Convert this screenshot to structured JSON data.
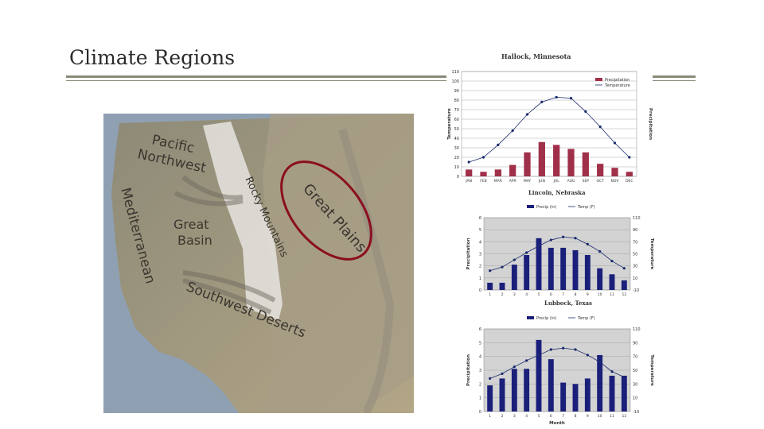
{
  "slide": {
    "title": "Climate Regions"
  },
  "map": {
    "labels": {
      "pacific": "Pacific",
      "northwest": "Northwest",
      "mediterranean": "Mediterranean",
      "great_basin_1": "Great",
      "great_basin_2": "Basin",
      "rocky": "Rocky Mountains",
      "great_plains": "Great Plains",
      "southwest": "Southwest Deserts"
    },
    "colors": {
      "highlight": "#8b0f1e",
      "land": "#9a9078",
      "water": "#8fa3b8"
    }
  },
  "chart_data": [
    {
      "type": "bar",
      "title": "Hallock, Minnesota",
      "legend": [
        "Precipitation",
        "Temperature"
      ],
      "ylabel_left": "Temperature",
      "ylabel_right": "Precipitation",
      "categories": [
        "JAN",
        "FEB",
        "MAR",
        "APR",
        "MAY",
        "JUN",
        "JUL",
        "AUG",
        "SEP",
        "OCT",
        "NOV",
        "DEC"
      ],
      "series": [
        {
          "name": "Precipitation",
          "values": [
            12,
            8,
            12,
            20,
            42,
            60,
            55,
            48,
            42,
            22,
            15,
            8
          ]
        },
        {
          "name": "Temperature",
          "values": [
            15,
            20,
            33,
            48,
            65,
            78,
            83,
            82,
            68,
            52,
            35,
            20
          ]
        }
      ],
      "y_ticks_left": [
        "0",
        "10",
        "20",
        "30",
        "40",
        "50",
        "60",
        "70",
        "80",
        "90",
        "100",
        "110"
      ],
      "ylim": [
        0,
        110
      ],
      "colors": {
        "bar": "#a0304a",
        "line": "#1a2a6c"
      },
      "caption": "Lincoln, Nebraska"
    },
    {
      "type": "bar",
      "title": "",
      "legend": [
        "Precip (in)",
        "Temp (F)"
      ],
      "ylabel_left": "Precipitation",
      "ylabel_right": "Temperature",
      "categories": [
        "1",
        "2",
        "3",
        "4",
        "5",
        "6",
        "7",
        "8",
        "9",
        "10",
        "11",
        "12"
      ],
      "series": [
        {
          "name": "Precip (in)",
          "values": [
            0.6,
            0.6,
            2.1,
            2.9,
            4.3,
            3.5,
            3.5,
            3.3,
            2.9,
            1.8,
            1.3,
            0.8
          ]
        },
        {
          "name": "Temp (F)",
          "values": [
            22,
            28,
            40,
            52,
            63,
            73,
            78,
            76,
            66,
            54,
            38,
            26
          ]
        }
      ],
      "y_ticks_left": [
        "0",
        "1",
        "2",
        "3",
        "4",
        "5",
        "6"
      ],
      "y_ticks_right": [
        "-10",
        "10",
        "30",
        "50",
        "70",
        "90",
        "110"
      ],
      "ylim": [
        0,
        6
      ],
      "colors": {
        "bar": "#1a1f7a",
        "line": "#1a2a6c"
      },
      "caption": "Lubbock, Texas"
    },
    {
      "type": "bar",
      "title": "",
      "legend": [
        "Precip (in)",
        "Temp (F)"
      ],
      "ylabel_left": "Precipitation",
      "ylabel_right": "Temperature",
      "xlabel": "Month",
      "categories": [
        "1",
        "2",
        "3",
        "4",
        "5",
        "6",
        "7",
        "8",
        "9",
        "10",
        "11",
        "12"
      ],
      "series": [
        {
          "name": "Precip (in)",
          "values": [
            1.9,
            2.4,
            3.1,
            3.1,
            5.2,
            3.8,
            2.1,
            2.0,
            2.4,
            4.1,
            2.6,
            2.6
          ]
        },
        {
          "name": "Temp (F)",
          "values": [
            38,
            45,
            55,
            64,
            72,
            80,
            82,
            80,
            72,
            62,
            48,
            40
          ]
        }
      ],
      "y_ticks_left": [
        "0",
        "1",
        "2",
        "3",
        "4",
        "5",
        "6"
      ],
      "y_ticks_right": [
        "-10",
        "10",
        "30",
        "50",
        "70",
        "90",
        "110"
      ],
      "ylim": [
        0,
        6
      ],
      "colors": {
        "bar": "#1a1f7a",
        "line": "#1a2a6c"
      }
    }
  ]
}
